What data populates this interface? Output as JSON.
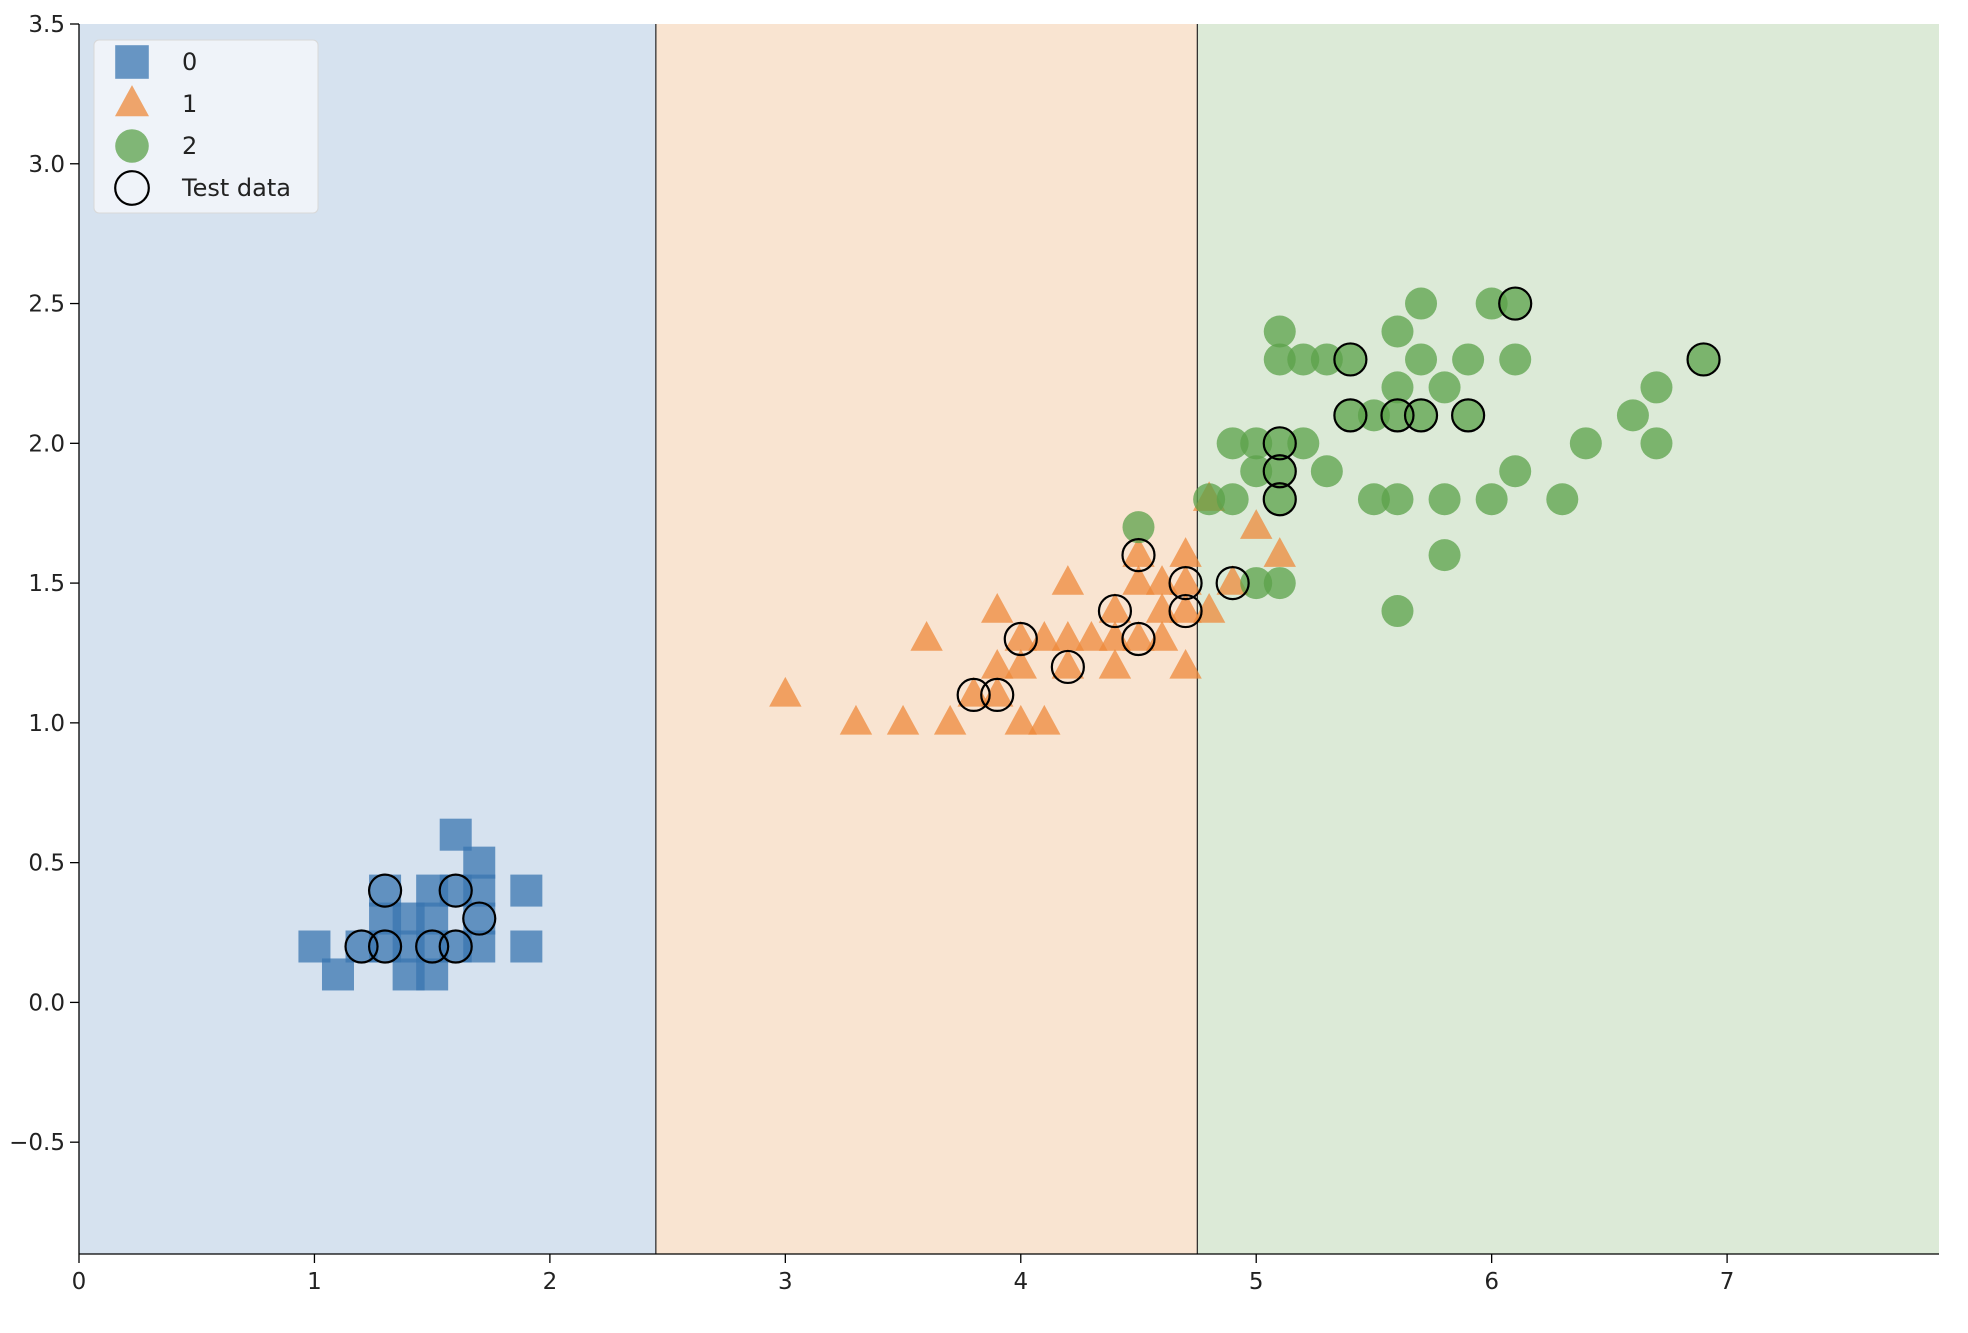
{
  "chart_data": {
    "type": "scatter",
    "title": "",
    "xlabel": "",
    "ylabel": "",
    "xlim": [
      0,
      7.9
    ],
    "ylim": [
      -0.9,
      3.5
    ],
    "xticks": [
      "0",
      "1",
      "2",
      "3",
      "4",
      "5",
      "6",
      "7"
    ],
    "yticks": [
      "−0.5",
      "0.0",
      "0.5",
      "1.0",
      "1.5",
      "2.0",
      "2.5",
      "3.0",
      "3.5"
    ],
    "decision_regions": [
      {
        "class": "0",
        "x_from": 0,
        "x_to": 2.45,
        "color": "#d6e2ef"
      },
      {
        "class": "1",
        "x_from": 2.45,
        "x_to": 4.75,
        "color": "#f9e4d1"
      },
      {
        "class": "2",
        "x_from": 4.75,
        "x_to": 7.9,
        "color": "#dcead7"
      }
    ],
    "decision_boundaries": [
      2.45,
      4.75
    ],
    "legend_position": "top-left",
    "legend": [
      {
        "label": "0",
        "marker": "square"
      },
      {
        "label": "1",
        "marker": "triangle"
      },
      {
        "label": "2",
        "marker": "circle"
      },
      {
        "label": "Test data",
        "marker": "open-circle"
      }
    ],
    "series": [
      {
        "name": "0",
        "marker": "square",
        "color": "#3a75b0",
        "points": [
          [
            1.0,
            0.2
          ],
          [
            1.1,
            0.1
          ],
          [
            1.2,
            0.2
          ],
          [
            1.3,
            0.2
          ],
          [
            1.3,
            0.3
          ],
          [
            1.3,
            0.4
          ],
          [
            1.4,
            0.1
          ],
          [
            1.4,
            0.2
          ],
          [
            1.4,
            0.3
          ],
          [
            1.5,
            0.1
          ],
          [
            1.5,
            0.2
          ],
          [
            1.5,
            0.3
          ],
          [
            1.5,
            0.4
          ],
          [
            1.6,
            0.2
          ],
          [
            1.6,
            0.4
          ],
          [
            1.6,
            0.6
          ],
          [
            1.7,
            0.2
          ],
          [
            1.7,
            0.3
          ],
          [
            1.7,
            0.4
          ],
          [
            1.7,
            0.5
          ],
          [
            1.9,
            0.2
          ],
          [
            1.9,
            0.4
          ]
        ]
      },
      {
        "name": "1",
        "marker": "triangle",
        "color": "#ee8a3b",
        "points": [
          [
            3.0,
            1.1
          ],
          [
            3.3,
            1.0
          ],
          [
            3.5,
            1.0
          ],
          [
            3.6,
            1.3
          ],
          [
            3.7,
            1.0
          ],
          [
            3.8,
            1.1
          ],
          [
            3.9,
            1.1
          ],
          [
            3.9,
            1.2
          ],
          [
            3.9,
            1.4
          ],
          [
            4.0,
            1.0
          ],
          [
            4.0,
            1.2
          ],
          [
            4.0,
            1.3
          ],
          [
            4.1,
            1.0
          ],
          [
            4.1,
            1.3
          ],
          [
            4.2,
            1.2
          ],
          [
            4.2,
            1.3
          ],
          [
            4.2,
            1.5
          ],
          [
            4.3,
            1.3
          ],
          [
            4.4,
            1.2
          ],
          [
            4.4,
            1.3
          ],
          [
            4.4,
            1.4
          ],
          [
            4.5,
            1.3
          ],
          [
            4.5,
            1.5
          ],
          [
            4.5,
            1.6
          ],
          [
            4.6,
            1.3
          ],
          [
            4.6,
            1.4
          ],
          [
            4.6,
            1.5
          ],
          [
            4.7,
            1.2
          ],
          [
            4.7,
            1.4
          ],
          [
            4.7,
            1.5
          ],
          [
            4.7,
            1.6
          ],
          [
            4.8,
            1.4
          ],
          [
            4.8,
            1.8
          ],
          [
            4.9,
            1.5
          ],
          [
            5.0,
            1.7
          ],
          [
            5.1,
            1.6
          ]
        ]
      },
      {
        "name": "2",
        "marker": "circle",
        "color": "#5ba14a",
        "points": [
          [
            4.5,
            1.7
          ],
          [
            4.8,
            1.8
          ],
          [
            4.9,
            1.8
          ],
          [
            4.9,
            2.0
          ],
          [
            5.0,
            1.5
          ],
          [
            5.0,
            1.9
          ],
          [
            5.0,
            2.0
          ],
          [
            5.1,
            1.5
          ],
          [
            5.1,
            1.8
          ],
          [
            5.1,
            1.9
          ],
          [
            5.1,
            2.0
          ],
          [
            5.1,
            2.3
          ],
          [
            5.1,
            2.4
          ],
          [
            5.2,
            2.0
          ],
          [
            5.2,
            2.3
          ],
          [
            5.3,
            1.9
          ],
          [
            5.3,
            2.3
          ],
          [
            5.4,
            2.1
          ],
          [
            5.4,
            2.3
          ],
          [
            5.5,
            1.8
          ],
          [
            5.5,
            2.1
          ],
          [
            5.6,
            1.4
          ],
          [
            5.6,
            1.8
          ],
          [
            5.6,
            2.1
          ],
          [
            5.6,
            2.2
          ],
          [
            5.6,
            2.4
          ],
          [
            5.7,
            2.1
          ],
          [
            5.7,
            2.3
          ],
          [
            5.7,
            2.5
          ],
          [
            5.8,
            1.6
          ],
          [
            5.8,
            1.8
          ],
          [
            5.8,
            2.2
          ],
          [
            5.9,
            2.1
          ],
          [
            5.9,
            2.3
          ],
          [
            6.0,
            1.8
          ],
          [
            6.0,
            2.5
          ],
          [
            6.1,
            1.9
          ],
          [
            6.1,
            2.3
          ],
          [
            6.1,
            2.5
          ],
          [
            6.3,
            1.8
          ],
          [
            6.4,
            2.0
          ],
          [
            6.6,
            2.1
          ],
          [
            6.7,
            2.0
          ],
          [
            6.7,
            2.2
          ],
          [
            6.9,
            2.3
          ]
        ]
      },
      {
        "name": "Test data",
        "marker": "open-circle",
        "color": "#000000",
        "points": [
          [
            1.2,
            0.2
          ],
          [
            1.3,
            0.2
          ],
          [
            1.3,
            0.4
          ],
          [
            1.5,
            0.2
          ],
          [
            1.6,
            0.2
          ],
          [
            1.6,
            0.4
          ],
          [
            1.7,
            0.3
          ],
          [
            3.8,
            1.1
          ],
          [
            3.9,
            1.1
          ],
          [
            4.0,
            1.3
          ],
          [
            4.2,
            1.2
          ],
          [
            4.4,
            1.4
          ],
          [
            4.5,
            1.3
          ],
          [
            4.5,
            1.6
          ],
          [
            4.7,
            1.4
          ],
          [
            4.7,
            1.5
          ],
          [
            4.9,
            1.5
          ],
          [
            5.1,
            1.8
          ],
          [
            5.1,
            1.9
          ],
          [
            5.1,
            2.0
          ],
          [
            5.4,
            2.1
          ],
          [
            5.4,
            2.3
          ],
          [
            5.6,
            2.1
          ],
          [
            5.7,
            2.1
          ],
          [
            5.9,
            2.1
          ],
          [
            6.1,
            2.5
          ],
          [
            6.9,
            2.3
          ]
        ]
      }
    ]
  }
}
